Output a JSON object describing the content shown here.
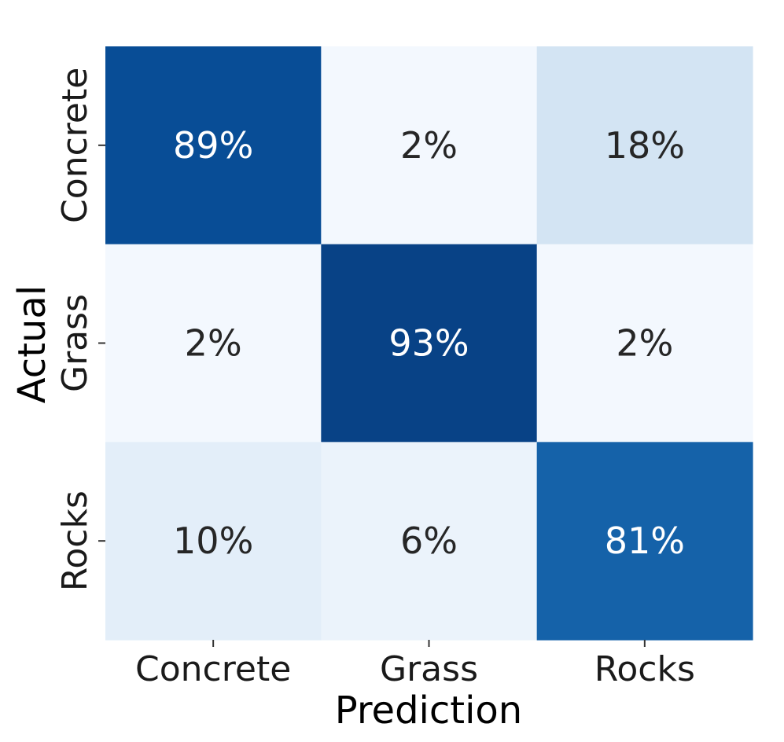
{
  "chart_data": {
    "type": "heatmap",
    "title": "",
    "xlabel": "Prediction",
    "ylabel": "Actual",
    "x_categories": [
      "Concrete",
      "Grass",
      "Rocks"
    ],
    "y_categories": [
      "Concrete",
      "Grass",
      "Rocks"
    ],
    "values": [
      [
        89,
        2,
        18
      ],
      [
        2,
        93,
        2
      ],
      [
        10,
        6,
        81
      ]
    ],
    "cell_labels": [
      [
        "89%",
        "2%",
        "18%"
      ],
      [
        "2%",
        "93%",
        "2%"
      ],
      [
        "10%",
        "6%",
        "81%"
      ]
    ],
    "value_unit": "%",
    "value_range": [
      0,
      100
    ],
    "colormap": "Blues",
    "colorbar": false,
    "grid": false,
    "colors": {
      "dark_text": "#262626",
      "light_text": "#ffffff",
      "tick_color": "#333333"
    }
  }
}
